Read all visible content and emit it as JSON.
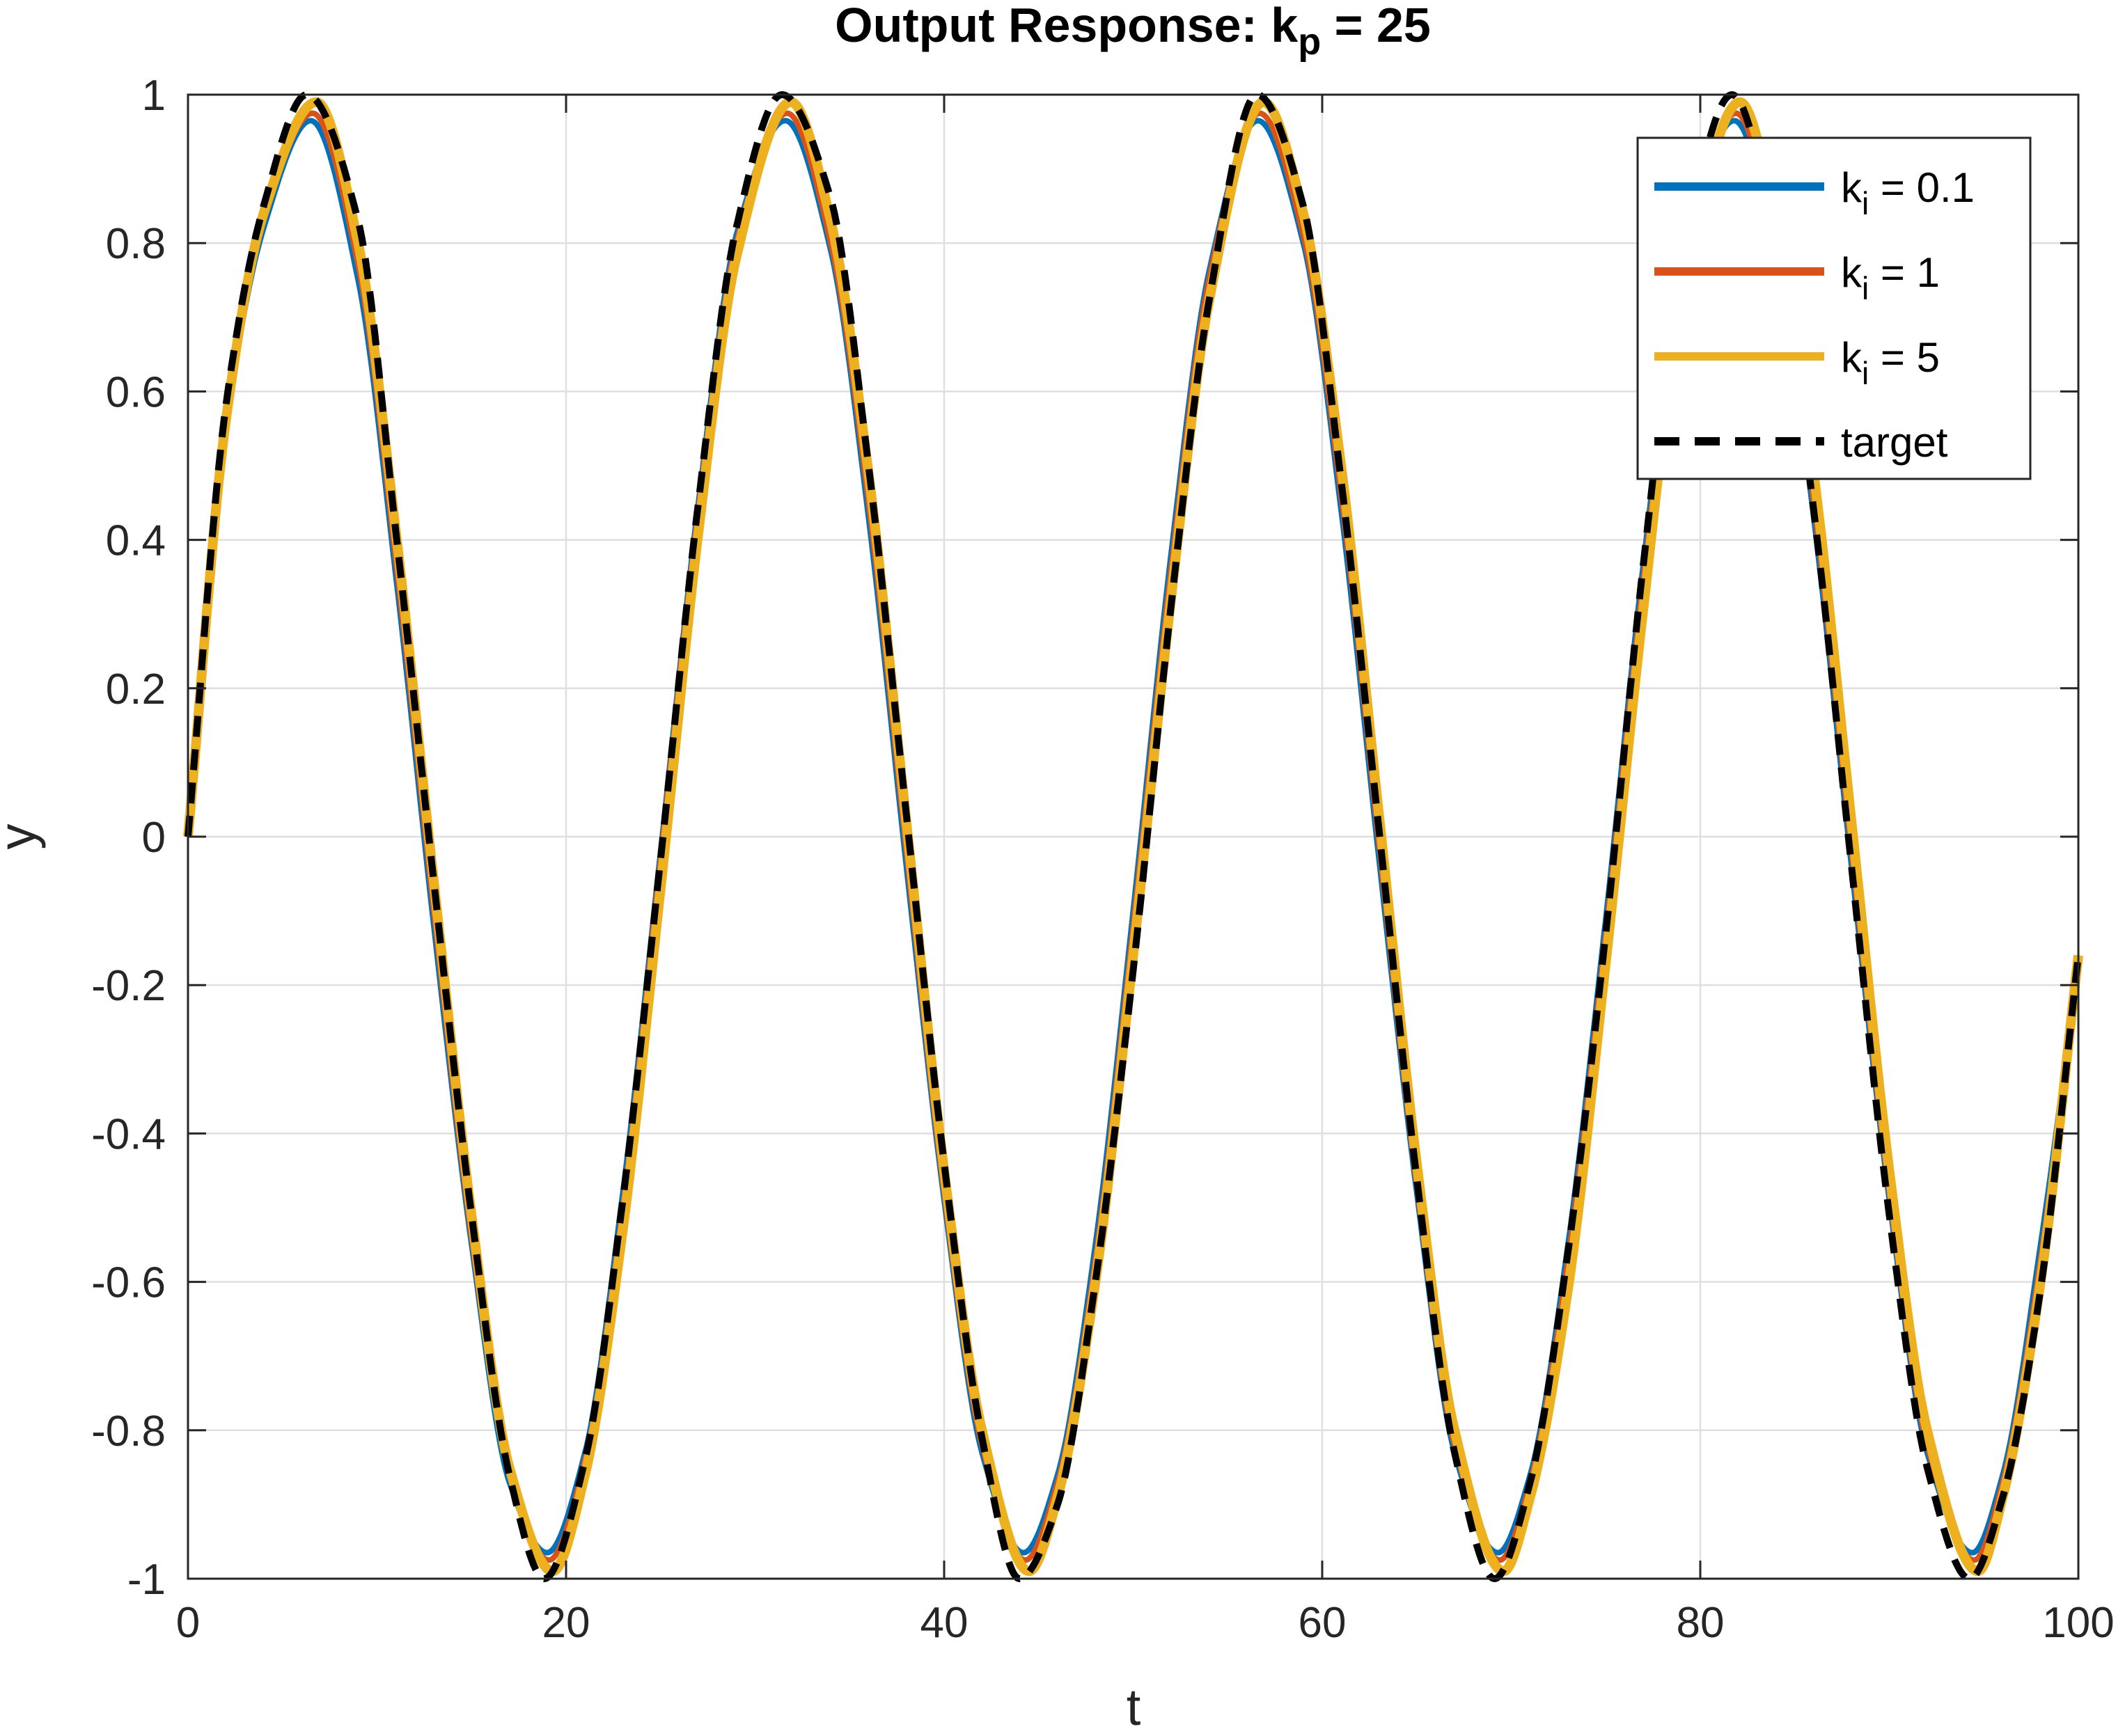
{
  "chart_data": {
    "type": "line",
    "title": {
      "main": "Output Response: k",
      "sub": "p",
      "rest": " = 25"
    },
    "xlabel": "t",
    "ylabel": "y",
    "xlim": [
      0,
      100
    ],
    "ylim": [
      -1,
      1
    ],
    "grid": true,
    "legend_position": "top-right",
    "x_ticks": [
      0,
      20,
      40,
      60,
      80,
      100
    ],
    "x_tick_labels": [
      "0",
      "20",
      "40",
      "60",
      "80",
      "100"
    ],
    "y_ticks": [
      -1,
      -0.8,
      -0.6,
      -0.4,
      -0.2,
      0,
      0.2,
      0.4,
      0.6,
      0.8,
      1
    ],
    "y_tick_labels": [
      "-1",
      "-0.8",
      "-0.6",
      "-0.4",
      "-0.2",
      "0",
      "0.2",
      "0.4",
      "0.6",
      "0.8",
      "1"
    ],
    "series": [
      {
        "name": "k_i = 0.1",
        "legend_main": "k",
        "legend_sub": "i",
        "legend_rest": " = 0.1",
        "color": "#0072BD",
        "style": "solid",
        "x": [
          0,
          2,
          4,
          6.5,
          9,
          11,
          13,
          15,
          17,
          19,
          21,
          23,
          25,
          27,
          29,
          31.6,
          34,
          36,
          38,
          40,
          42,
          44.2,
          46,
          48,
          50,
          52,
          54,
          56.6,
          59,
          61,
          63,
          65,
          67,
          69.3,
          71,
          73,
          75,
          77,
          79,
          81.8,
          84,
          86,
          88,
          90,
          92,
          94.4,
          96,
          98,
          100
        ],
        "y": [
          0,
          0.55,
          0.82,
          0.965,
          0.75,
          0.35,
          -0.12,
          -0.55,
          -0.87,
          -0.965,
          -0.83,
          -0.48,
          -0.02,
          0.45,
          0.81,
          0.965,
          0.79,
          0.43,
          -0.04,
          -0.49,
          -0.83,
          -0.965,
          -0.86,
          -0.55,
          -0.1,
          0.38,
          0.76,
          0.965,
          0.8,
          0.44,
          -0.03,
          -0.48,
          -0.83,
          -0.965,
          -0.86,
          -0.55,
          -0.11,
          0.37,
          0.76,
          0.965,
          0.79,
          0.43,
          -0.04,
          -0.49,
          -0.83,
          -0.965,
          -0.86,
          -0.55,
          -0.17
        ]
      },
      {
        "name": "k_i = 1",
        "legend_main": "k",
        "legend_sub": "i",
        "legend_rest": " = 1",
        "color": "#D95319",
        "style": "solid",
        "x": [
          0,
          2,
          4,
          6.6,
          9,
          11,
          13,
          15,
          17,
          19.1,
          21,
          23,
          25,
          27,
          29,
          31.7,
          34,
          36,
          38,
          40,
          42,
          44.3,
          46,
          48,
          50,
          52,
          54,
          56.7,
          59,
          61,
          63,
          65,
          67,
          69.4,
          71,
          73,
          75,
          77,
          79,
          81.9,
          84,
          86,
          88,
          90,
          92,
          94.5,
          96,
          98,
          100
        ],
        "y": [
          0,
          0.56,
          0.83,
          0.975,
          0.77,
          0.37,
          -0.1,
          -0.54,
          -0.86,
          -0.975,
          -0.84,
          -0.5,
          -0.03,
          0.44,
          0.8,
          0.975,
          0.8,
          0.45,
          -0.02,
          -0.48,
          -0.82,
          -0.975,
          -0.87,
          -0.57,
          -0.12,
          0.36,
          0.75,
          0.975,
          0.81,
          0.46,
          -0.01,
          -0.47,
          -0.82,
          -0.975,
          -0.87,
          -0.57,
          -0.13,
          0.35,
          0.75,
          0.975,
          0.8,
          0.45,
          -0.02,
          -0.48,
          -0.82,
          -0.975,
          -0.87,
          -0.57,
          -0.16
        ]
      },
      {
        "name": "k_i = 5",
        "legend_main": "k",
        "legend_sub": "i",
        "legend_rest": " = 5",
        "color": "#EDB120",
        "style": "solid",
        "x": [
          0,
          2,
          4,
          6.8,
          9,
          11,
          13,
          15,
          17,
          19.3,
          21,
          23,
          25,
          27,
          29,
          31.9,
          34,
          36,
          38,
          40,
          42,
          44.5,
          46,
          48,
          50,
          52,
          54,
          56.9,
          59,
          61,
          63,
          65,
          67,
          69.6,
          71,
          73,
          75,
          77,
          79,
          82.1,
          84,
          86,
          88,
          90,
          92,
          94.7,
          96,
          98,
          100
        ],
        "y": [
          0,
          0.56,
          0.84,
          0.99,
          0.8,
          0.41,
          -0.06,
          -0.51,
          -0.85,
          -0.99,
          -0.86,
          -0.53,
          -0.07,
          0.41,
          0.78,
          0.99,
          0.83,
          0.49,
          0.02,
          -0.45,
          -0.8,
          -0.99,
          -0.89,
          -0.6,
          -0.16,
          0.32,
          0.72,
          0.99,
          0.84,
          0.5,
          0.03,
          -0.44,
          -0.8,
          -0.99,
          -0.89,
          -0.61,
          -0.17,
          0.31,
          0.72,
          0.99,
          0.83,
          0.49,
          0.02,
          -0.45,
          -0.8,
          -0.99,
          -0.89,
          -0.6,
          -0.16
        ]
      },
      {
        "name": "target",
        "legend_main": "target",
        "legend_sub": "",
        "legend_rest": "",
        "color": "#000000",
        "style": "dashed",
        "x": [
          0,
          2,
          4,
          6.28,
          9,
          11,
          13,
          15,
          17,
          18.85,
          21,
          23,
          25,
          27,
          29,
          31.42,
          34,
          36,
          38,
          40,
          42,
          43.98,
          46,
          48,
          50,
          52,
          54,
          56.55,
          59,
          61,
          63,
          65,
          67,
          69.12,
          71,
          73,
          75,
          77,
          79,
          81.68,
          84,
          86,
          88,
          90,
          92,
          94.25,
          96,
          98,
          100
        ],
        "y": [
          0,
          0.58,
          0.85,
          1.0,
          0.83,
          0.41,
          -0.06,
          -0.51,
          -0.86,
          -1.0,
          -0.84,
          -0.49,
          -0.03,
          0.45,
          0.82,
          1.0,
          0.86,
          0.5,
          0.03,
          -0.44,
          -0.81,
          -1.0,
          -0.9,
          -0.6,
          -0.18,
          0.31,
          0.72,
          1.0,
          0.85,
          0.48,
          0.01,
          -0.46,
          -0.83,
          -1.0,
          -0.87,
          -0.56,
          -0.13,
          0.37,
          0.77,
          1.0,
          0.8,
          0.44,
          -0.04,
          -0.51,
          -0.85,
          -1.0,
          -0.89,
          -0.61,
          -0.16
        ]
      }
    ]
  }
}
